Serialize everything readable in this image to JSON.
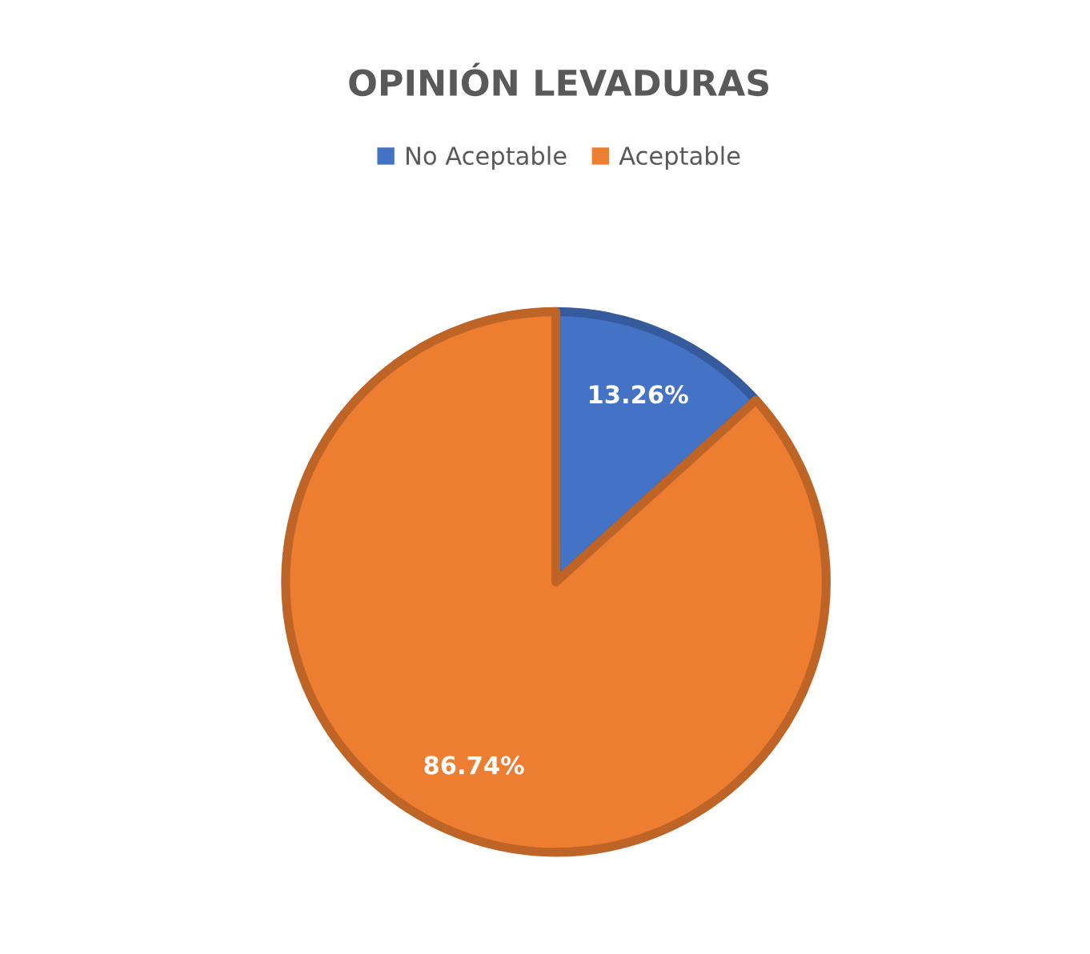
{
  "chart_data": {
    "type": "pie",
    "title": "OPINIÓN LEVADURAS",
    "categories": [
      "No Aceptable",
      "Aceptable"
    ],
    "values": [
      13.26,
      86.74
    ],
    "colors": [
      "#4472c4",
      "#ed7d31"
    ],
    "value_labels": [
      "13.26%",
      "86.74%"
    ],
    "legend": "top"
  }
}
